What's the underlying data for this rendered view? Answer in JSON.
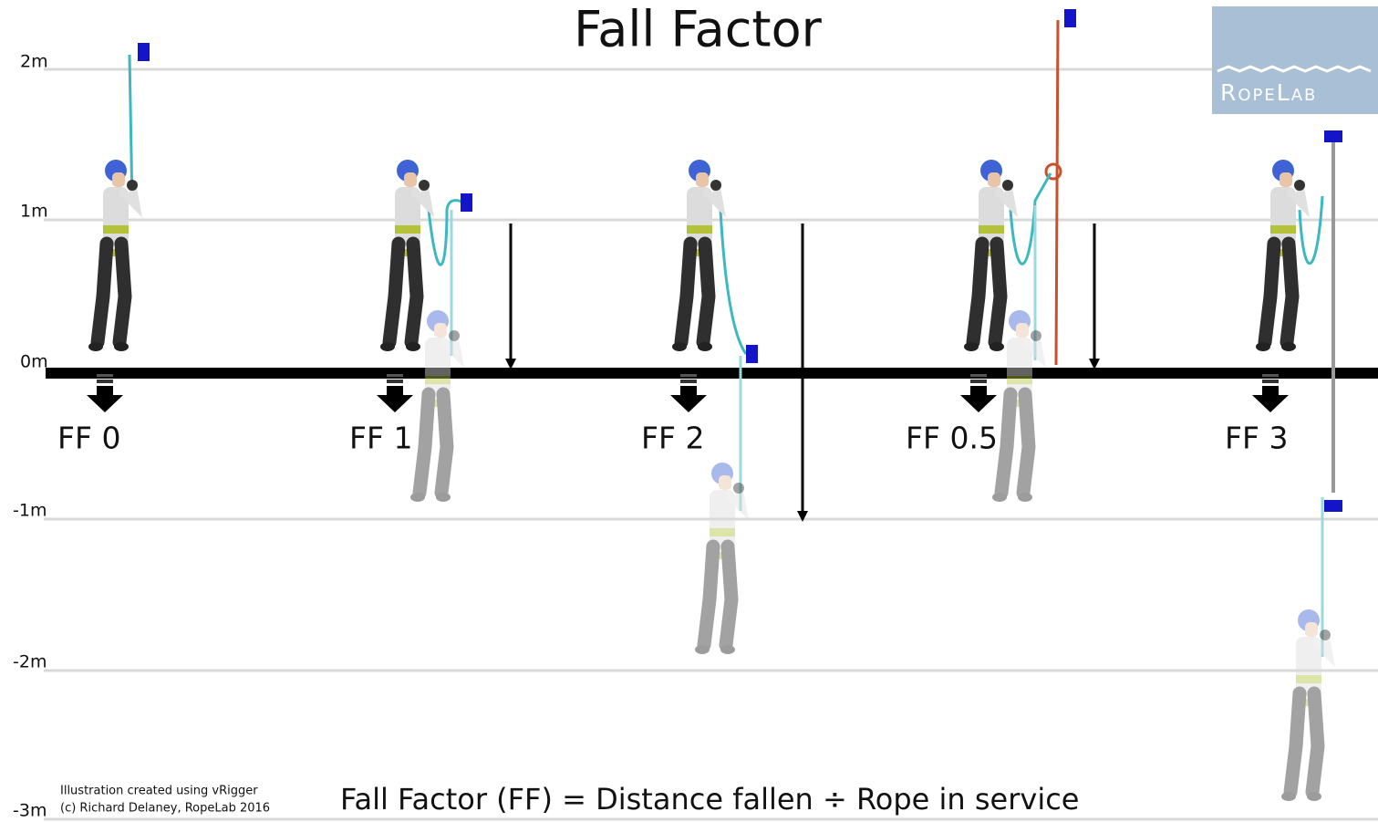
{
  "title": "Fall Factor",
  "axis_labels": [
    "2m",
    "1m",
    "0m",
    "-1m",
    "-2m",
    "-3m"
  ],
  "scenarios": [
    "FF 0",
    "FF 1",
    "FF 2",
    "FF 0.5",
    "FF 3"
  ],
  "formula": "Fall Factor (FF) = Distance fallen ÷ Rope in service",
  "credits": [
    "Illustration created using vRigger",
    "(c) Richard Delaney, RopeLab 2016"
  ],
  "logo": "RopeLab"
}
